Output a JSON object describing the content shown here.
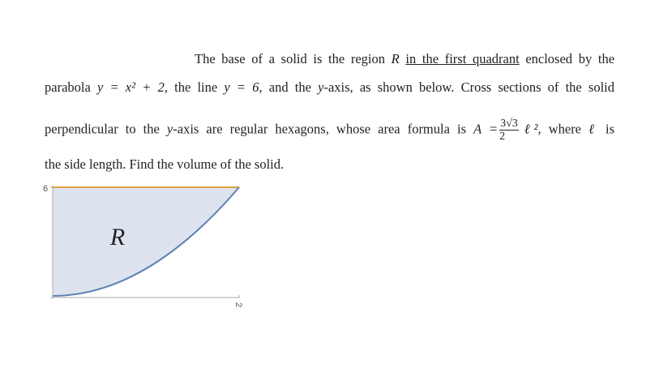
{
  "problem": {
    "lines": [
      {
        "parts": [
          "The base of a solid is the region",
          "R",
          "in the first quadrant",
          "enclosed by the"
        ]
      },
      {
        "parts": [
          "parabola",
          "y = x² + 2",
          ", the line",
          "y = 6",
          ", and the",
          "y",
          "-axis, as shown below. Cross sections of the solid"
        ]
      },
      {
        "parts": [
          "perpendicular to the",
          "y",
          "-axis are regular hexagons, whose area formula is",
          "A =",
          "3√3",
          "2",
          "ℓ²",
          ", where",
          "ℓ",
          "is"
        ]
      },
      {
        "parts": [
          "the side length. Find the volume of the solid."
        ]
      }
    ]
  },
  "figure": {
    "region_label": "R",
    "y_tick_label": "6",
    "x_tick_label": "2"
  }
}
